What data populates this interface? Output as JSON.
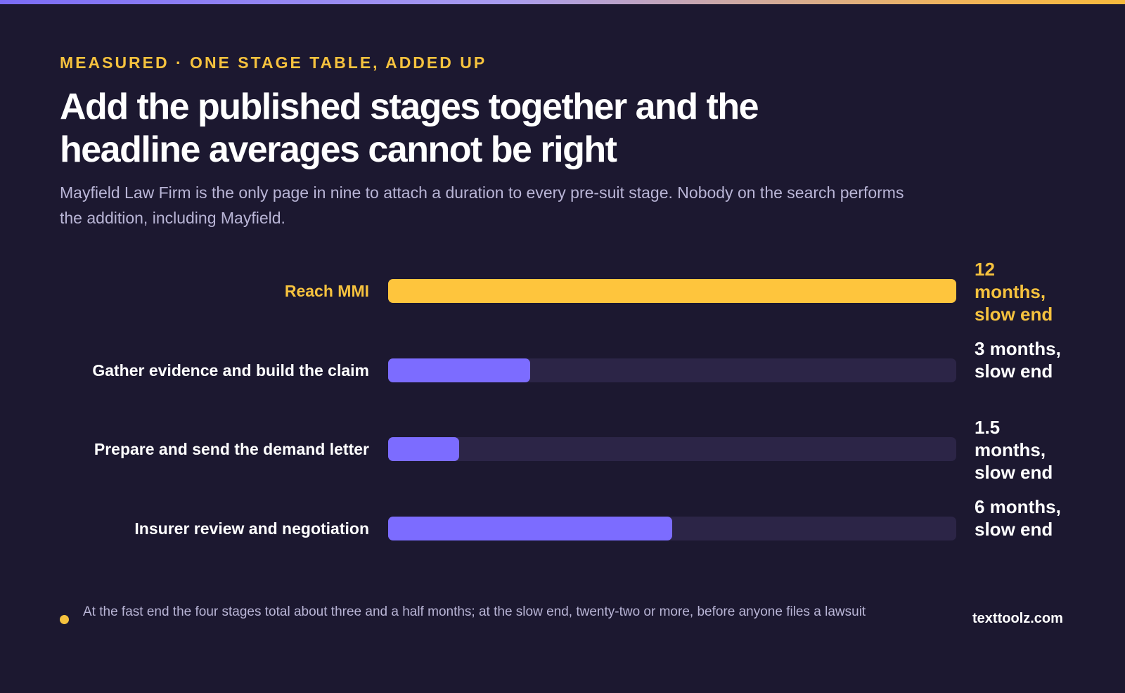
{
  "header": {
    "eyebrow": "MEASURED · ONE STAGE TABLE, ADDED UP",
    "title": "Add the published stages together and the headline averages cannot be right",
    "subtitle": "Mayfield Law Firm is the only page in nine to attach a duration to every pre-suit stage. Nobody on the search performs the addition, including Mayfield."
  },
  "colors": {
    "background": "#1c1830",
    "accent": "#f6c23e",
    "highlight_bar": "#fec53d",
    "bar": "#7c6cff",
    "track": "#2c2547",
    "muted_text": "#b9b5d6"
  },
  "chart_data": {
    "type": "bar",
    "orientation": "horizontal",
    "title": "",
    "xlabel": "",
    "ylabel": "",
    "xlim": [
      0,
      12
    ],
    "grid": false,
    "categories": [
      "Reach MMI",
      "Gather evidence and build the claim",
      "Prepare and send the demand letter",
      "Insurer review and negotiation"
    ],
    "values": [
      12,
      3,
      1.5,
      6
    ],
    "value_labels": [
      "12 months, slow end",
      "3 months, slow end",
      "1.5 months, slow end",
      "6 months, slow end"
    ],
    "highlighted_index": 0
  },
  "footnote": {
    "text": "At the fast end the four stages total about three and a half months; at the slow end, twenty-two or more, before anyone files a lawsuit"
  },
  "brand": "texttoolz.com"
}
